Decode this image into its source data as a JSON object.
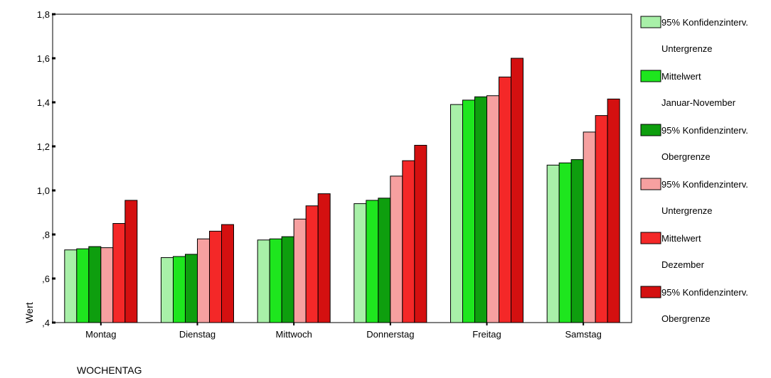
{
  "chart_data": {
    "type": "bar",
    "ylabel": "Wert",
    "xlabel": "WOCHENTAG",
    "ylim": [
      0.4,
      1.8
    ],
    "yticks": [
      {
        "value": 0.4,
        "label": ",4"
      },
      {
        "value": 0.6,
        "label": ",6"
      },
      {
        "value": 0.8,
        "label": ",8"
      },
      {
        "value": 1.0,
        "label": "1,0"
      },
      {
        "value": 1.2,
        "label": "1,2"
      },
      {
        "value": 1.4,
        "label": "1,4"
      },
      {
        "value": 1.6,
        "label": "1,6"
      },
      {
        "value": 1.8,
        "label": "1,8"
      }
    ],
    "categories": [
      "Montag",
      "Dienstag",
      "Mittwoch",
      "Donnerstag",
      "Freitag",
      "Samstag"
    ],
    "legend_position": "right",
    "grid": false,
    "series": [
      {
        "line1": "95% Konfidenzinterv.",
        "line2": "Untergrenze",
        "color": "#a8f0a8",
        "values": [
          0.73,
          0.695,
          0.775,
          0.94,
          1.39,
          1.115
        ]
      },
      {
        "line1": "Mittelwert",
        "line2": "Januar-November",
        "color": "#1ee61e",
        "values": [
          0.735,
          0.7,
          0.78,
          0.955,
          1.41,
          1.125
        ]
      },
      {
        "line1": "95% Konfidenzinterv.",
        "line2": "Obergrenze",
        "color": "#0e9e0e",
        "values": [
          0.745,
          0.71,
          0.79,
          0.965,
          1.425,
          1.14
        ]
      },
      {
        "line1": "95% Konfidenzinterv.",
        "line2": "Untergrenze",
        "color": "#f6a0a0",
        "values": [
          0.74,
          0.78,
          0.87,
          1.065,
          1.43,
          1.265
        ]
      },
      {
        "line1": "Mittelwert",
        "line2": "Dezember",
        "color": "#f42828",
        "values": [
          0.85,
          0.815,
          0.93,
          1.135,
          1.515,
          1.34
        ]
      },
      {
        "line1": "95% Konfidenzinterv.",
        "line2": "Obergrenze",
        "color": "#d41010",
        "values": [
          0.955,
          0.845,
          0.985,
          1.205,
          1.6,
          1.415
        ]
      }
    ]
  }
}
